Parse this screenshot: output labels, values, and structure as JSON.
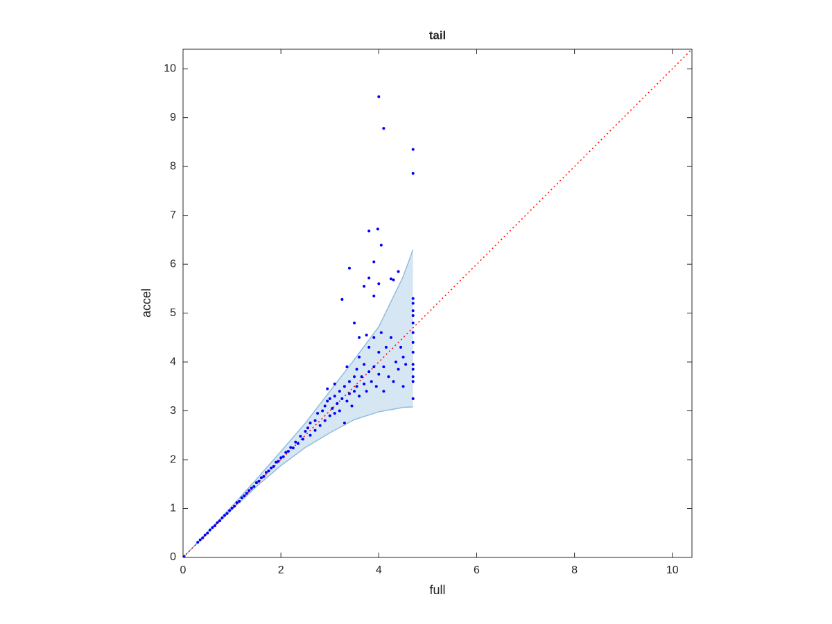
{
  "chart_data": {
    "type": "scatter",
    "title": "tail",
    "x_label": "full",
    "y_label": "accel",
    "xlim": [
      0,
      10.4
    ],
    "ylim": [
      0,
      10.4
    ],
    "xticks": [
      0,
      2,
      4,
      6,
      8,
      10
    ],
    "yticks": [
      0,
      1,
      2,
      3,
      4,
      5,
      6,
      7,
      8,
      9,
      10
    ],
    "color": "#0000ff",
    "x": [
      0.02,
      0.3,
      0.35,
      0.4,
      0.45,
      0.5,
      0.55,
      0.6,
      0.65,
      0.7,
      0.75,
      0.8,
      0.85,
      0.9,
      0.95,
      1.0,
      1.05,
      1.1,
      1.15,
      1.2,
      1.25,
      1.3,
      1.35,
      1.4,
      1.45,
      1.5,
      1.55,
      1.6,
      1.65,
      1.7,
      1.75,
      1.8,
      1.85,
      1.9,
      1.95,
      2.0,
      2.05,
      2.1,
      2.15,
      2.2,
      2.25,
      2.3,
      2.35,
      2.4,
      2.45,
      2.5,
      2.55,
      2.6,
      2.6,
      2.7,
      2.7,
      2.75,
      2.8,
      2.85,
      2.9,
      2.9,
      2.95,
      3.0,
      3.0,
      3.05,
      3.1,
      3.1,
      3.15,
      3.2,
      3.2,
      3.25,
      3.3,
      3.3,
      3.35,
      3.4,
      3.4,
      3.45,
      3.5,
      3.5,
      3.55,
      3.55,
      3.6,
      3.6,
      3.65,
      3.7,
      3.7,
      3.75,
      3.8,
      3.8,
      3.85,
      3.9,
      3.9,
      3.95,
      4.0,
      4.0,
      4.05,
      4.1,
      4.1,
      4.15,
      4.2,
      4.25,
      4.3,
      4.35,
      4.4,
      4.45,
      4.5,
      4.5,
      4.55,
      3.1,
      2.95,
      3.35,
      3.5,
      3.6,
      3.75,
      4.7,
      4.7,
      4.7,
      4.7,
      4.7,
      4.7,
      4.7,
      4.7,
      4.7,
      4.7,
      4.7,
      4.7,
      4.7,
      4.0,
      4.1,
      4.7,
      4.7,
      3.8,
      3.98,
      4.05,
      3.9,
      3.4,
      4.4,
      3.25,
      3.8,
      4.25,
      4.3,
      3.7,
      4.0,
      3.9
    ],
    "y": [
      0.02,
      0.31,
      0.36,
      0.4,
      0.46,
      0.5,
      0.56,
      0.61,
      0.65,
      0.71,
      0.75,
      0.81,
      0.86,
      0.9,
      0.96,
      1.01,
      1.05,
      1.12,
      1.15,
      1.22,
      1.26,
      1.31,
      1.37,
      1.42,
      1.45,
      1.53,
      1.56,
      1.63,
      1.66,
      1.74,
      1.77,
      1.83,
      1.86,
      1.95,
      1.97,
      2.04,
      2.06,
      2.15,
      2.17,
      2.25,
      2.24,
      2.36,
      2.33,
      2.48,
      2.42,
      2.58,
      2.65,
      2.5,
      2.75,
      2.8,
      2.6,
      2.95,
      2.7,
      3.0,
      2.8,
      3.1,
      3.2,
      2.9,
      3.25,
      3.05,
      3.3,
      2.95,
      3.15,
      3.4,
      3.0,
      3.25,
      3.5,
      2.75,
      3.2,
      3.6,
      3.35,
      3.1,
      3.7,
      3.4,
      3.85,
      3.5,
      3.3,
      4.1,
      3.7,
      3.95,
      3.55,
      3.4,
      4.3,
      3.8,
      3.6,
      4.5,
      3.9,
      3.5,
      4.2,
      3.75,
      4.6,
      3.9,
      3.4,
      4.3,
      3.7,
      4.5,
      3.6,
      4.0,
      3.85,
      4.3,
      3.5,
      4.1,
      3.95,
      3.55,
      3.45,
      3.9,
      4.8,
      4.5,
      4.55,
      3.25,
      3.6,
      3.7,
      3.85,
      3.95,
      4.2,
      4.4,
      4.6,
      4.8,
      4.95,
      5.05,
      5.2,
      5.3,
      9.43,
      8.78,
      8.35,
      7.86,
      6.68,
      6.72,
      6.39,
      6.05,
      5.92,
      5.85,
      5.28,
      5.72,
      5.7,
      5.68,
      5.55,
      5.6,
      5.35
    ],
    "band": {
      "x": [
        0,
        0.5,
        1,
        1.5,
        2,
        2.5,
        3,
        3.5,
        4,
        4.5,
        4.7
      ],
      "upper": [
        0,
        0.52,
        1.05,
        1.6,
        2.17,
        2.75,
        3.4,
        4.05,
        4.72,
        5.75,
        6.3
      ],
      "lower": [
        0,
        0.5,
        0.98,
        1.45,
        1.88,
        2.25,
        2.55,
        2.82,
        2.98,
        3.07,
        3.08
      ],
      "color": "#d6e6f3",
      "edge_color": "#8fbde0"
    },
    "reference_line": {
      "x": [
        0,
        10.4
      ],
      "y": [
        0,
        10.4
      ],
      "color": "#ff0000"
    }
  }
}
